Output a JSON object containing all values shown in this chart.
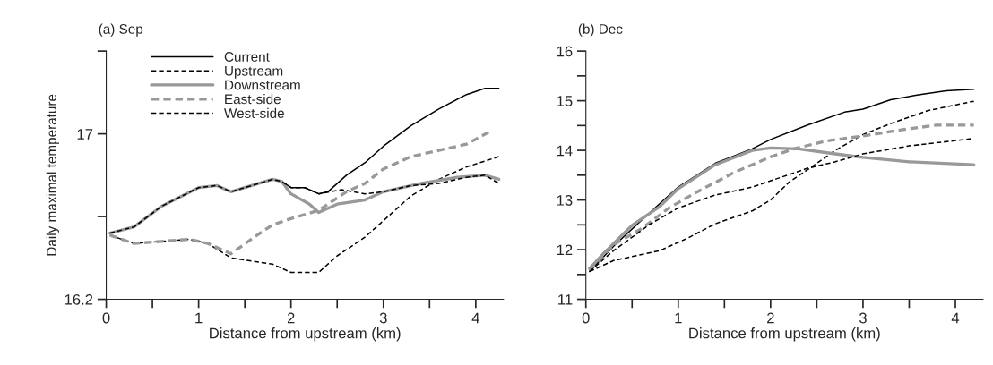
{
  "chart_data": [
    {
      "type": "line",
      "title": "(a) Sep",
      "xlabel": "Distance from upstream (km)",
      "ylabel": "Daily maximal temperature",
      "xlim": [
        0,
        4.3
      ],
      "xticks": [
        0,
        {
          "value": 0.5,
          "label": null
        },
        1,
        {
          "value": 1.5,
          "label": null
        },
        2,
        {
          "value": 2.5,
          "label": null
        },
        3,
        {
          "value": 3.5,
          "label": null
        },
        4
      ],
      "ylim": [
        16.2,
        17.4
      ],
      "yticks": [
        16.2,
        {
          "value": 16.6,
          "label": null
        },
        17,
        {
          "value": 17.4,
          "label": null
        }
      ],
      "legend": "top left",
      "grid": false,
      "series": [
        {
          "name": "Current",
          "color": "#000000",
          "line_style": "solid",
          "x": [
            0.04,
            0.3,
            0.6,
            1.0,
            1.2,
            1.35,
            1.5,
            1.8,
            1.9,
            2.0,
            2.15,
            2.3,
            2.4,
            2.6,
            2.8,
            3.0,
            3.3,
            3.6,
            3.9,
            4.1,
            4.25
          ],
          "values": [
            16.52,
            16.55,
            16.65,
            16.74,
            16.75,
            16.72,
            16.74,
            16.78,
            16.77,
            16.74,
            16.74,
            16.71,
            16.72,
            16.8,
            16.86,
            16.94,
            17.04,
            17.12,
            17.19,
            17.22,
            17.22
          ]
        },
        {
          "name": "Upstream",
          "color": "#000000",
          "line_style": "dashed",
          "x": [
            0.04,
            0.3,
            0.6,
            0.9,
            1.1,
            1.35,
            1.8,
            2.0,
            2.3,
            2.5,
            2.8,
            3.0,
            3.3,
            3.6,
            3.9,
            4.25
          ],
          "values": [
            16.51,
            16.47,
            16.48,
            16.49,
            16.47,
            16.4,
            16.37,
            16.33,
            16.33,
            16.41,
            16.5,
            16.58,
            16.7,
            16.78,
            16.84,
            16.89
          ]
        },
        {
          "name": "Downstream",
          "color": "#999999",
          "line_style": "solid",
          "x": [
            0.04,
            0.3,
            0.6,
            1.0,
            1.2,
            1.35,
            1.5,
            1.8,
            1.9,
            2.0,
            2.2,
            2.3,
            2.5,
            2.8,
            3.0,
            3.4,
            3.8,
            4.1,
            4.25
          ],
          "values": [
            16.52,
            16.55,
            16.65,
            16.74,
            16.75,
            16.72,
            16.74,
            16.78,
            16.77,
            16.71,
            16.66,
            16.62,
            16.66,
            16.68,
            16.72,
            16.76,
            16.79,
            16.8,
            16.78
          ]
        },
        {
          "name": "East-side",
          "color": "#999999",
          "line_style": "dashed",
          "x": [
            0.04,
            0.3,
            0.6,
            0.9,
            1.1,
            1.35,
            1.6,
            1.8,
            2.0,
            2.3,
            2.6,
            2.8,
            3.0,
            3.3,
            3.6,
            3.9,
            4.15
          ],
          "values": [
            16.51,
            16.47,
            16.48,
            16.49,
            16.47,
            16.42,
            16.5,
            16.56,
            16.59,
            16.63,
            16.72,
            16.76,
            16.83,
            16.89,
            16.92,
            16.95,
            17.01
          ]
        },
        {
          "name": "West-side",
          "color": "#000000",
          "line_style": "dashed",
          "x": [
            0.04,
            0.3,
            0.6,
            1.0,
            1.2,
            1.35,
            1.5,
            1.8,
            1.9,
            2.0,
            2.15,
            2.3,
            2.55,
            2.8,
            3.0,
            3.3,
            3.6,
            3.9,
            4.1,
            4.25
          ],
          "values": [
            16.52,
            16.55,
            16.65,
            16.74,
            16.75,
            16.72,
            16.74,
            16.78,
            16.77,
            16.74,
            16.74,
            16.71,
            16.73,
            16.71,
            16.72,
            16.75,
            16.76,
            16.79,
            16.8,
            16.76
          ]
        }
      ]
    },
    {
      "type": "line",
      "title": "(b) Dec",
      "xlabel": "Distance from upstream (km)",
      "xlim": [
        0,
        4.3
      ],
      "xticks": [
        0,
        {
          "value": 0.5,
          "label": null
        },
        1,
        {
          "value": 1.5,
          "label": null
        },
        2,
        {
          "value": 2.5,
          "label": null
        },
        3,
        {
          "value": 3.5,
          "label": null
        },
        4
      ],
      "ylim": [
        11,
        16
      ],
      "yticks": [
        11,
        {
          "value": 11.5,
          "label": null
        },
        12,
        {
          "value": 12.5,
          "label": null
        },
        13,
        {
          "value": 13.5,
          "label": null
        },
        14,
        {
          "value": 14.5,
          "label": null
        },
        15,
        {
          "value": 15.5,
          "label": null
        },
        16
      ],
      "grid": false,
      "series": [
        {
          "color": "#000000",
          "line_style": "solid",
          "x": [
            0.04,
            0.3,
            0.6,
            1.0,
            1.4,
            1.8,
            2.0,
            2.4,
            2.8,
            3.0,
            3.3,
            3.6,
            3.9,
            4.2
          ],
          "values": [
            11.56,
            12.07,
            12.59,
            13.26,
            13.74,
            14.03,
            14.22,
            14.51,
            14.77,
            14.83,
            15.02,
            15.12,
            15.2,
            15.23
          ]
        },
        {
          "color": "#000000",
          "line_style": "dashed",
          "x": [
            0.04,
            0.3,
            0.8,
            1.1,
            1.4,
            1.8,
            2.0,
            2.2,
            2.4,
            2.7,
            3.0,
            3.3,
            3.7,
            4.2
          ],
          "values": [
            11.56,
            11.78,
            11.98,
            12.23,
            12.52,
            12.78,
            13.0,
            13.36,
            13.61,
            14.0,
            14.32,
            14.54,
            14.8,
            14.99
          ]
        },
        {
          "color": "#999999",
          "line_style": "solid",
          "x": [
            0.04,
            0.2,
            0.5,
            0.8,
            1.0,
            1.4,
            1.8,
            2.0,
            2.3,
            2.7,
            3.0,
            3.5,
            4.2
          ],
          "values": [
            11.62,
            11.94,
            12.49,
            12.87,
            13.23,
            13.71,
            14.0,
            14.05,
            14.03,
            13.93,
            13.86,
            13.77,
            13.71
          ]
        },
        {
          "color": "#999999",
          "line_style": "dashed",
          "x": [
            0.04,
            0.3,
            0.6,
            0.9,
            1.2,
            1.6,
            2.0,
            2.25,
            2.6,
            3.0,
            3.4,
            3.8,
            4.2
          ],
          "values": [
            11.59,
            12.1,
            12.42,
            12.84,
            13.16,
            13.55,
            13.87,
            14.03,
            14.19,
            14.29,
            14.41,
            14.51,
            14.51
          ]
        },
        {
          "color": "#000000",
          "line_style": "dashed",
          "x": [
            0.04,
            0.3,
            0.7,
            1.0,
            1.4,
            1.8,
            2.1,
            2.4,
            2.7,
            3.0,
            3.5,
            4.2
          ],
          "values": [
            11.56,
            11.98,
            12.52,
            12.84,
            13.1,
            13.26,
            13.45,
            13.64,
            13.77,
            13.93,
            14.09,
            14.24
          ]
        }
      ]
    }
  ]
}
